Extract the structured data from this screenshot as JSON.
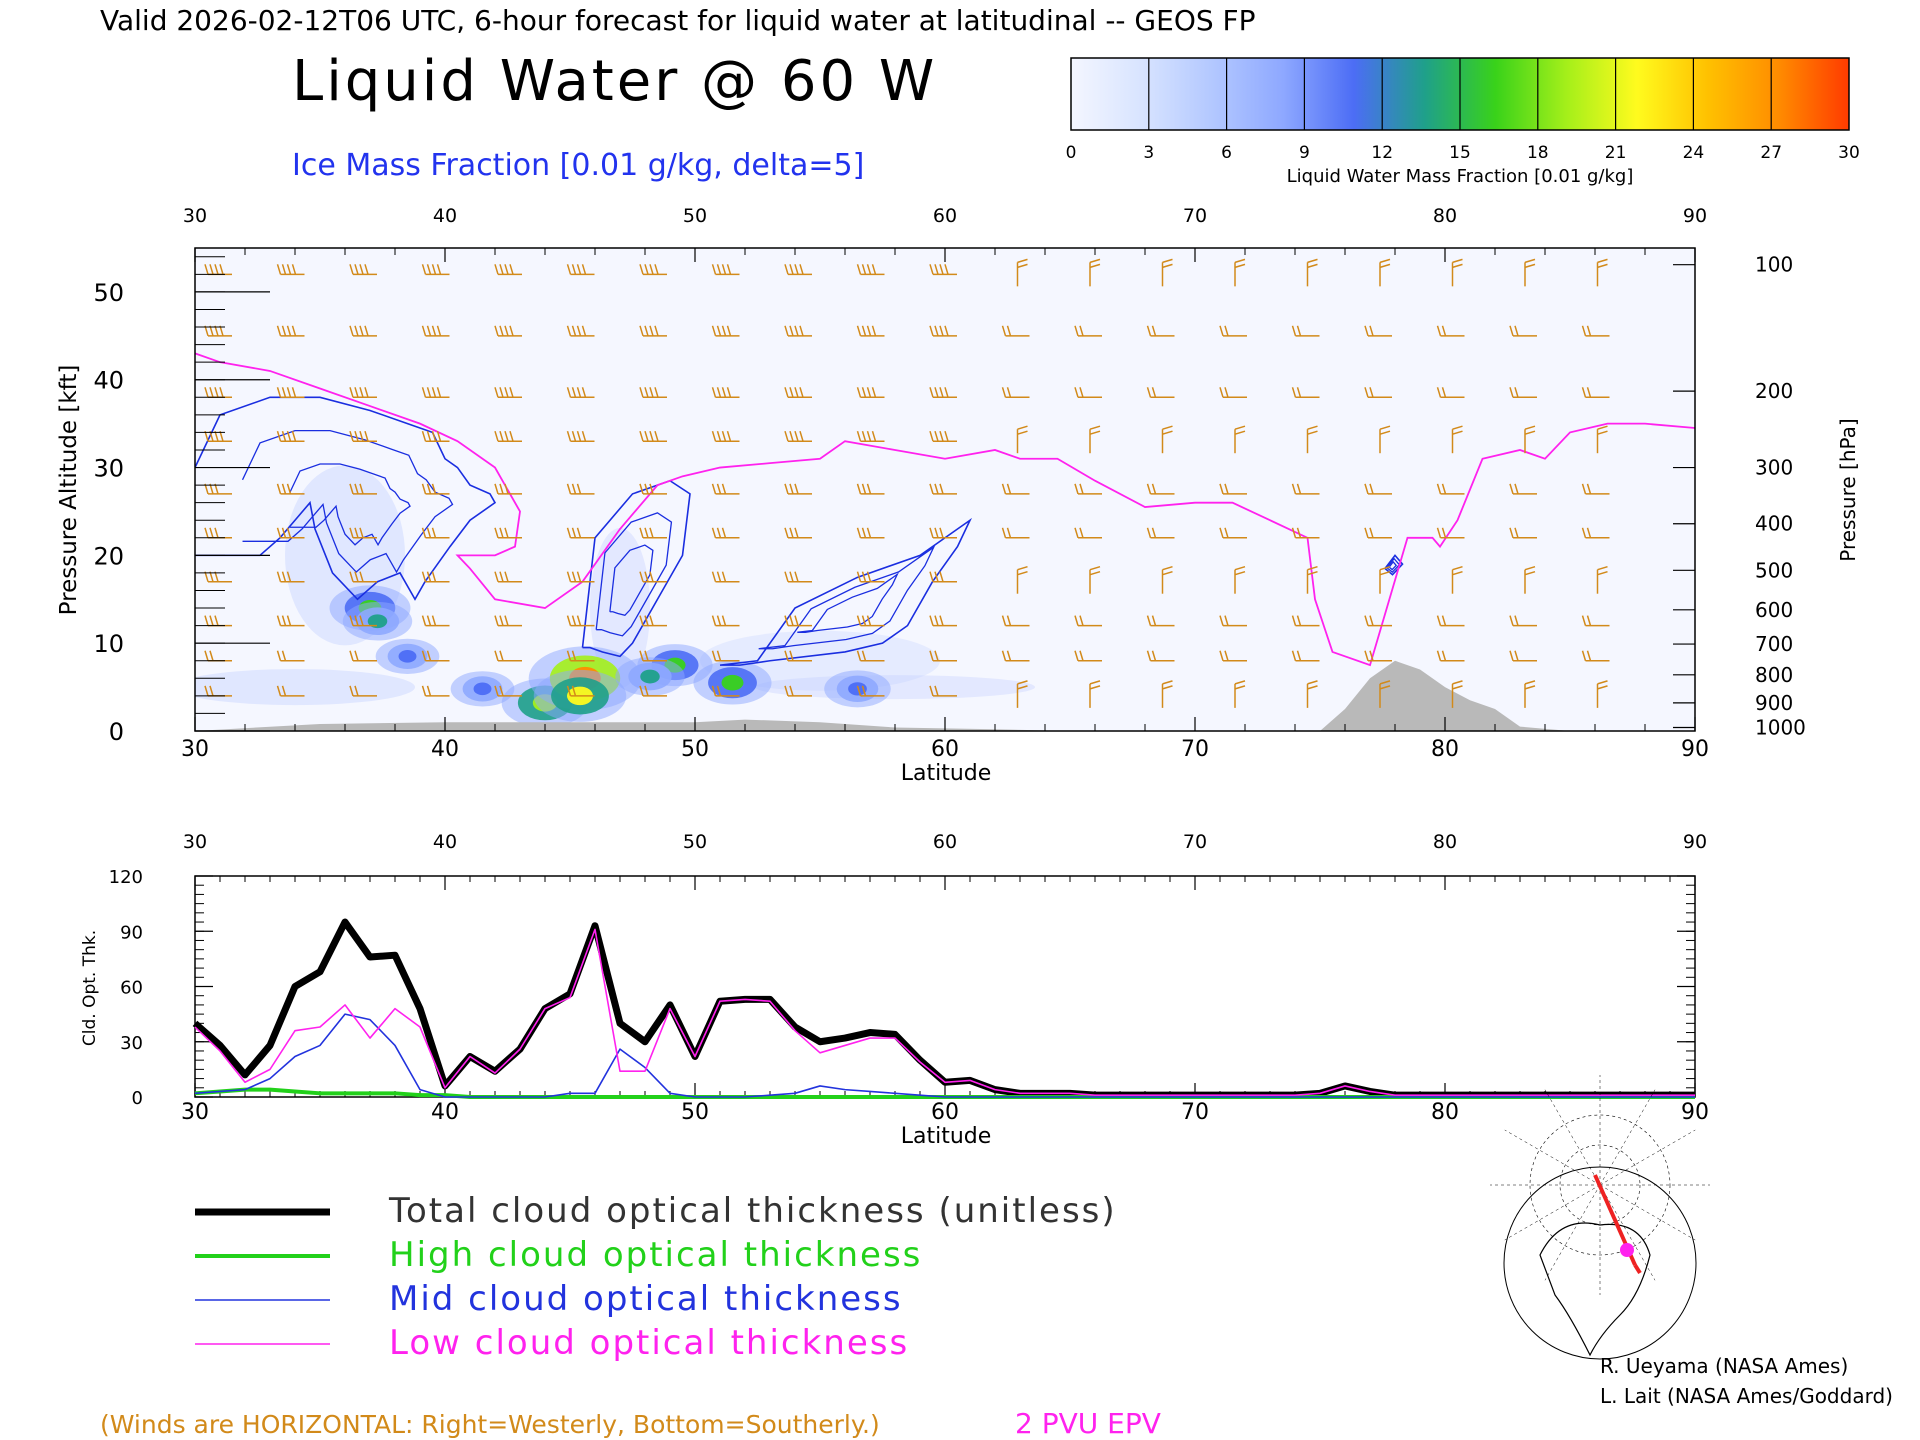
{
  "header": {
    "valid_line": "Valid 2026-02-12T06 UTC, 6-hour forecast for liquid water at latitudinal -- GEOS FP",
    "title": "Liquid Water @ 60 W",
    "subtitle": "Ice Mass Fraction [0.01 g/kg, delta=5]"
  },
  "colorbar": {
    "ticks": [
      "0",
      "3",
      "6",
      "9",
      "12",
      "15",
      "18",
      "21",
      "24",
      "27",
      "30"
    ],
    "label": "Liquid Water Mass Fraction [0.01 g/kg]",
    "colors": [
      "#f4f6ff",
      "#d8e4ff",
      "#b3c8ff",
      "#8ea8ff",
      "#4c6df5",
      "#1fa08a",
      "#39d21a",
      "#a4ef1a",
      "#fffb1e",
      "#ffc100",
      "#ff8c00",
      "#ff3b00"
    ]
  },
  "footer": {
    "winds_note": "(Winds are HORIZONTAL: Right=Westerly, Bottom=Southerly.)",
    "pvu_note": "2 PVU EPV",
    "credit1": "R. Ueyama (NASA Ames)",
    "credit2": "L. Lait (NASA Ames/Goddard)"
  },
  "legend": [
    {
      "label": "Total cloud optical thickness (unitless)",
      "color": "#000000",
      "width": 7
    },
    {
      "label": "High cloud optical thickness",
      "color": "#22d11a",
      "width": 4
    },
    {
      "label": "Mid cloud optical thickness",
      "color": "#2233dd",
      "width": 1.6
    },
    {
      "label": "Low cloud optical thickness",
      "color": "#ff22ee",
      "width": 1.6
    }
  ],
  "chart_data": [
    {
      "type": "heatmap",
      "title": "Liquid Water @ 60 W",
      "xlabel": "Latitude",
      "ylabel": "Pressure Altitude [kft]",
      "y2label": "Pressure [hPa]",
      "xlim": [
        30,
        90
      ],
      "ylim": [
        0,
        55
      ],
      "x_ticks": [
        30,
        40,
        50,
        60,
        70,
        80,
        90
      ],
      "y_ticks": [
        0,
        10,
        20,
        30,
        40,
        50
      ],
      "y2_ticks": [
        "100",
        "200",
        "300",
        "400",
        "500",
        "600",
        "700",
        "800",
        "900",
        "1000"
      ],
      "y2_tick_alt_kft": [
        53.1,
        38.7,
        30.0,
        23.6,
        18.3,
        13.8,
        9.9,
        6.4,
        3.2,
        0.4
      ],
      "liquid_water_blobs": [
        {
          "lat": 37.0,
          "alt": 14.0,
          "value": 17
        },
        {
          "lat": 37.3,
          "alt": 12.5,
          "value": 13
        },
        {
          "lat": 44.0,
          "alt": 3.2,
          "value": 19
        },
        {
          "lat": 45.6,
          "alt": 6.0,
          "value": 28
        },
        {
          "lat": 45.4,
          "alt": 4.0,
          "value": 21
        },
        {
          "lat": 49.2,
          "alt": 7.5,
          "value": 15
        },
        {
          "lat": 48.2,
          "alt": 6.2,
          "value": 13
        },
        {
          "lat": 51.5,
          "alt": 5.5,
          "value": 16
        },
        {
          "lat": 56.5,
          "alt": 4.8,
          "value": 12
        },
        {
          "lat": 38.5,
          "alt": 8.5,
          "value": 11
        },
        {
          "lat": 41.5,
          "alt": 4.8,
          "value": 11
        }
      ],
      "ice_contours": [
        {
          "name": "Ice Mass Fraction",
          "lat": [
            30.0,
            31.0,
            33.0,
            35.0,
            37.0,
            38.5,
            39.5,
            40.0,
            40.5,
            41.0,
            41.8,
            42.0,
            41.0,
            40.2,
            39.2,
            38.8,
            38.2,
            37.3,
            36.5,
            35.5,
            34.8,
            34.6,
            34.0,
            33.4,
            32.6,
            31.5,
            30.5,
            30.0
          ],
          "alt": [
            30.0,
            36.0,
            38.0,
            38.0,
            36.5,
            35.0,
            34.0,
            31.0,
            30.0,
            28.0,
            27.0,
            26.0,
            24.0,
            21.0,
            17.0,
            15.0,
            18.0,
            17.0,
            15.0,
            18.0,
            23.0,
            26.0,
            24.0,
            22.0,
            20.0,
            20.0,
            20.0,
            20.0
          ]
        },
        {
          "name": "Ice Mass Fraction",
          "lat": [
            45.5,
            46.0,
            47.5,
            49.0,
            49.8,
            49.5,
            48.5,
            47.5,
            47.0,
            46.3,
            45.8,
            45.5
          ],
          "alt": [
            9.5,
            22.0,
            27.0,
            28.5,
            27.0,
            20.0,
            15.0,
            10.0,
            8.5,
            9.0,
            9.5,
            9.5
          ]
        },
        {
          "name": "Ice Mass Fraction",
          "lat": [
            51.0,
            52.5,
            54.0,
            56.5,
            59.0,
            60.5,
            61.0,
            60.5,
            59.5,
            58.5,
            57.5,
            56.0,
            53.0,
            51.8,
            51.0
          ],
          "alt": [
            7.5,
            8.0,
            14.0,
            17.5,
            20.0,
            23.0,
            24.0,
            21.0,
            17.0,
            12.0,
            10.0,
            9.0,
            8.0,
            7.5,
            7.5
          ]
        },
        {
          "name": "Ice Mass Fraction",
          "lat": [
            77.6,
            78.0,
            78.3,
            77.9,
            77.6
          ],
          "alt": [
            18.5,
            20.0,
            19.0,
            17.8,
            18.5
          ]
        }
      ],
      "epv_2pvu_line": {
        "lat": [
          30,
          31,
          33,
          35,
          37,
          39,
          40.5,
          42,
          43,
          42.8,
          42,
          40.5,
          41,
          42,
          44,
          45.5,
          47,
          48.5,
          49.5,
          51,
          53,
          55,
          56,
          58,
          60,
          62,
          63,
          64.5,
          66,
          68,
          70,
          71.5,
          73,
          74.5,
          74.8,
          75.5,
          77,
          78.5,
          79.5,
          79.8,
          80.5,
          81.5,
          83,
          84,
          85,
          86.5,
          88,
          90
        ],
        "alt": [
          43,
          42,
          41,
          39,
          37,
          35,
          33,
          30,
          25,
          21,
          20,
          20,
          18.5,
          15,
          14,
          17,
          23,
          28,
          29,
          30,
          30.5,
          31,
          33,
          32,
          31,
          32,
          31,
          31,
          28.5,
          25.5,
          26,
          26,
          24,
          22,
          15,
          9,
          7.5,
          22,
          22,
          21,
          24,
          31,
          32,
          31,
          34,
          35,
          35,
          34.5
        ]
      },
      "surface_height_kft": {
        "lat": [
          30,
          35,
          40,
          45,
          50,
          52,
          55,
          58,
          62,
          65,
          70,
          75,
          76,
          77,
          78,
          79,
          80,
          81,
          82,
          83,
          85,
          90
        ],
        "alt": [
          0,
          0.8,
          1.0,
          1.0,
          1.0,
          1.3,
          1.0,
          0.4,
          0.2,
          0,
          0,
          0,
          2.5,
          6.0,
          8.0,
          7.0,
          5.0,
          3.5,
          2.5,
          0.5,
          0,
          0
        ]
      },
      "wind_barb_levels_kft": [
        52,
        45,
        38,
        33,
        27,
        22,
        17,
        12,
        8,
        4
      ]
    },
    {
      "type": "line",
      "xlabel": "Latitude",
      "ylabel": "Cld. Opt. Thk.",
      "xlim": [
        30,
        90
      ],
      "ylim": [
        0,
        120
      ],
      "x_ticks": [
        30,
        40,
        50,
        60,
        70,
        80,
        90
      ],
      "y_ticks": [
        0,
        30,
        60,
        90,
        120
      ],
      "x": [
        30,
        31,
        32,
        33,
        34,
        35,
        36,
        37,
        38,
        39,
        40,
        41,
        42,
        43,
        44,
        45,
        46,
        47,
        48,
        49,
        50,
        51,
        52,
        53,
        54,
        55,
        56,
        57,
        58,
        59,
        60,
        61,
        62,
        63,
        64,
        65,
        66,
        67,
        68,
        69,
        70,
        71,
        72,
        73,
        74,
        75,
        76,
        77,
        78,
        79,
        80,
        81,
        82,
        83,
        84,
        85,
        86,
        87,
        88,
        89,
        90
      ],
      "series": [
        {
          "name": "Total cloud optical thickness (unitless)",
          "values": [
            40,
            28,
            12,
            28,
            60,
            68,
            95,
            76,
            77,
            48,
            6,
            22,
            14,
            26,
            48,
            56,
            93,
            40,
            30,
            50,
            22,
            52,
            53,
            53,
            38,
            30,
            32,
            35,
            34,
            20,
            8,
            9,
            4,
            2,
            2,
            2,
            1,
            1,
            1,
            1,
            1,
            1,
            1,
            1,
            1,
            2,
            6,
            3,
            1,
            1,
            1,
            1,
            1,
            1,
            1,
            1,
            1,
            1,
            1,
            1,
            1
          ]
        },
        {
          "name": "High cloud optical thickness",
          "values": [
            2,
            3,
            4,
            4,
            3,
            2,
            2,
            2,
            2,
            1,
            1,
            0,
            0,
            0,
            0,
            0,
            0,
            0,
            0,
            0,
            0,
            0,
            0,
            0,
            0,
            0,
            0,
            0,
            0,
            0,
            0,
            0,
            0,
            0,
            0,
            0,
            0,
            0,
            0,
            0,
            0,
            0,
            0,
            0,
            0,
            0,
            0,
            0,
            0,
            0,
            0,
            0,
            0,
            0,
            0,
            0,
            0,
            0,
            0,
            0,
            0
          ]
        },
        {
          "name": "Mid cloud optical thickness",
          "values": [
            2,
            3,
            4,
            10,
            22,
            28,
            45,
            42,
            28,
            4,
            0,
            0,
            0,
            0,
            0,
            2,
            2,
            26,
            16,
            2,
            0,
            0,
            0,
            1,
            2,
            6,
            4,
            3,
            2,
            1,
            0,
            0,
            0,
            0,
            0,
            0,
            0,
            0,
            0,
            0,
            0,
            0,
            0,
            0,
            0,
            0,
            0,
            0,
            0,
            0,
            0,
            0,
            0,
            0,
            0,
            0,
            0,
            0,
            0,
            0,
            0
          ]
        },
        {
          "name": "Low cloud optical thickness",
          "values": [
            38,
            25,
            8,
            15,
            36,
            38,
            50,
            32,
            48,
            38,
            5,
            22,
            13,
            26,
            48,
            54,
            91,
            14,
            14,
            48,
            22,
            52,
            53,
            52,
            36,
            24,
            28,
            32,
            32,
            19,
            8,
            9,
            4,
            2,
            2,
            2,
            1,
            1,
            1,
            1,
            1,
            1,
            1,
            1,
            1,
            2,
            6,
            3,
            1,
            1,
            1,
            1,
            1,
            1,
            1,
            1,
            1,
            1,
            1,
            1,
            1
          ]
        }
      ]
    }
  ]
}
